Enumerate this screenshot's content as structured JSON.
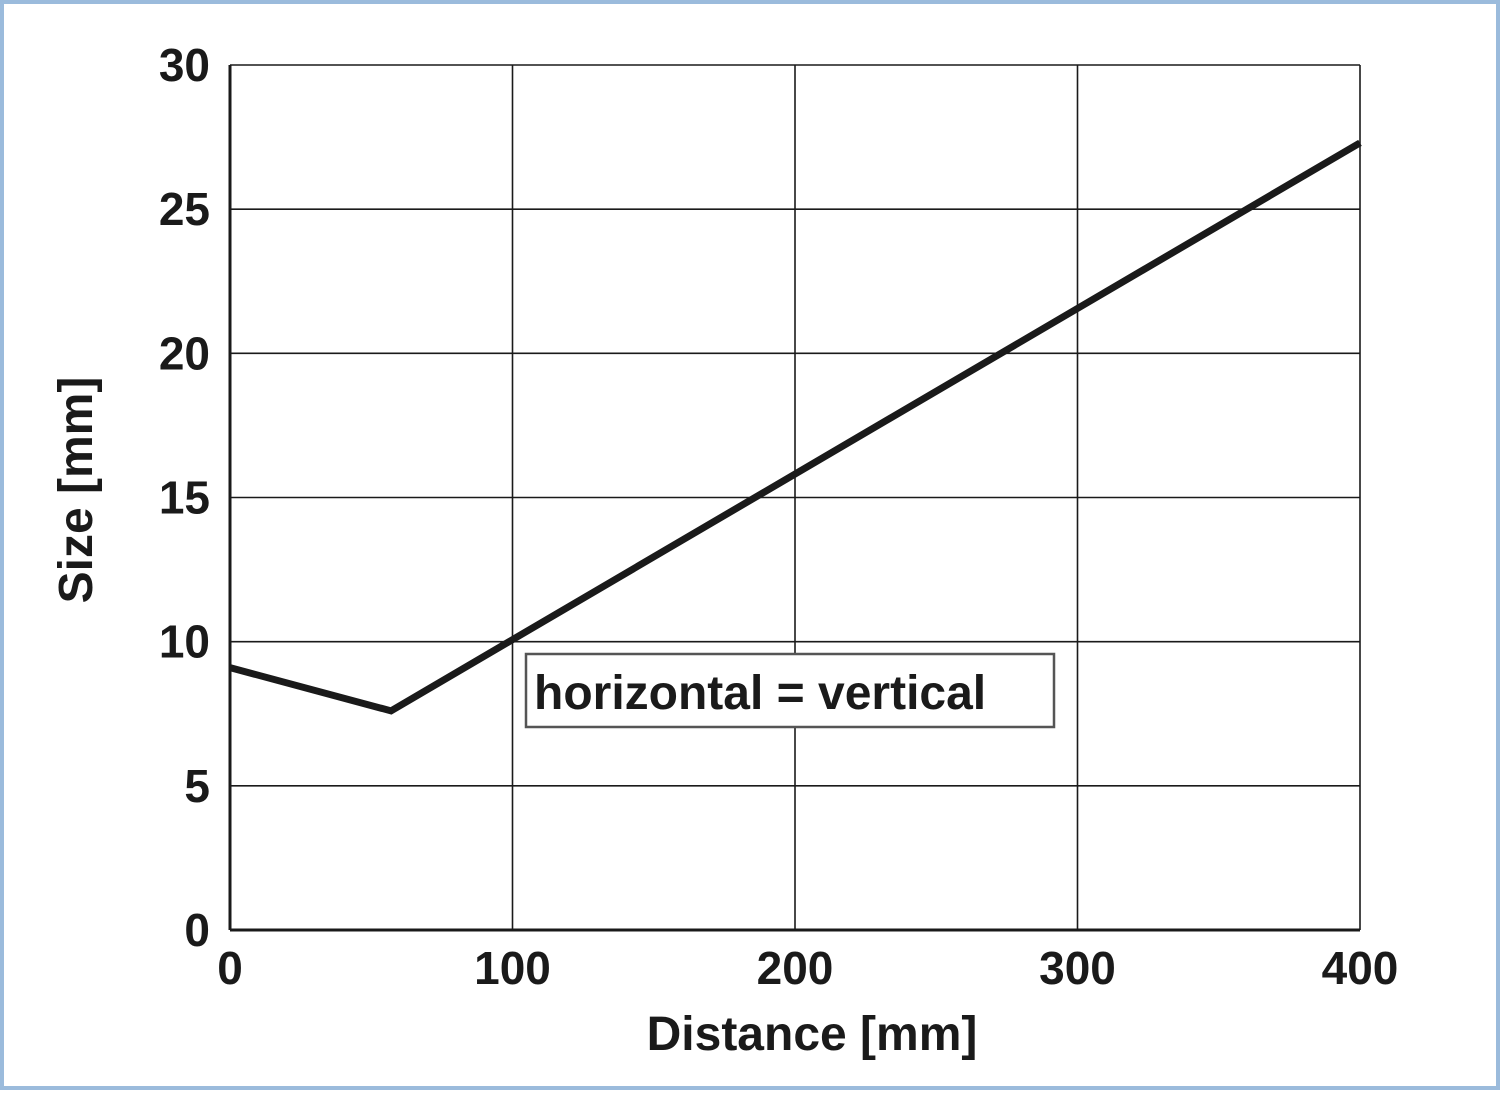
{
  "chart_data": {
    "type": "line",
    "title": "",
    "xlabel": "Distance [mm]",
    "ylabel": "Size [mm]",
    "xlim": [
      0,
      400
    ],
    "ylim": [
      0,
      30
    ],
    "x_ticks": [
      0,
      100,
      200,
      300,
      400
    ],
    "y_ticks": [
      0,
      5,
      10,
      15,
      20,
      25,
      30
    ],
    "x_tick_labels": [
      "0",
      "100",
      "200",
      "300",
      "400"
    ],
    "y_tick_labels": [
      "0",
      "5",
      "10",
      "15",
      "20",
      "25",
      "30"
    ],
    "grid": true,
    "series": [
      {
        "x": [
          0,
          57,
          400
        ],
        "y": [
          9.1,
          7.6,
          27.3
        ],
        "color": "#1a1a1a"
      }
    ],
    "annotations": [
      {
        "text": "horizontal = vertical"
      }
    ]
  },
  "colors": {
    "frame_border": "#9bbbdc",
    "ink": "#1a1a1a",
    "background": "#ffffff"
  }
}
